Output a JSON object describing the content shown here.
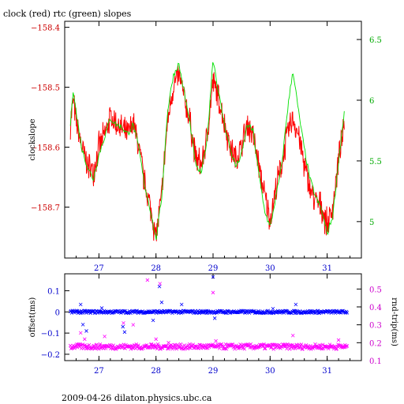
{
  "title": "clock (red) rtc (green) slopes",
  "footer": "2009-04-26 dilaton.physics.ubc.ca",
  "colors": {
    "clock": "#ff0000",
    "rtc": "#00e000",
    "offset": "#0000ff",
    "rnd_trip": "#ff00ff",
    "left_ticks_top": "#cc0000",
    "right_ticks_top": "#00aa00",
    "left_ticks_bottom": "#0000cc",
    "right_ticks_bottom": "#cc00cc"
  },
  "chart_data": [
    {
      "type": "line",
      "title": "clock (red) rtc (green) slopes",
      "xlabel": "",
      "ylabel": "clockslope",
      "ylabel_right": "",
      "xlim": [
        26.4,
        31.6
      ],
      "ylim": [
        -158.785,
        -158.39
      ],
      "ylim_right": [
        4.7,
        6.65
      ],
      "xticks": [
        "27",
        "28",
        "29",
        "30",
        "31"
      ],
      "yticks": [
        "-158.4",
        "-158.5",
        "-158.6",
        "-158.7"
      ],
      "yticks_right": [
        "6.5",
        "6",
        "5.5",
        "5"
      ],
      "series": [
        {
          "name": "clock",
          "axis": "left",
          "x": [
            26.5,
            26.55,
            26.6,
            26.7,
            26.8,
            26.9,
            27.0,
            27.1,
            27.2,
            27.3,
            27.4,
            27.5,
            27.6,
            27.7,
            27.8,
            27.9,
            28.0,
            28.1,
            28.2,
            28.3,
            28.4,
            28.5,
            28.6,
            28.7,
            28.8,
            28.9,
            29.0,
            29.1,
            29.2,
            29.3,
            29.4,
            29.5,
            29.6,
            29.7,
            29.8,
            29.9,
            30.0,
            30.1,
            30.2,
            30.3,
            30.4,
            30.5,
            30.6,
            30.7,
            30.8,
            30.9,
            31.0,
            31.1,
            31.2,
            31.3
          ],
          "y": [
            -158.56,
            -158.52,
            -158.56,
            -158.6,
            -158.63,
            -158.64,
            -158.6,
            -158.58,
            -158.55,
            -158.56,
            -158.57,
            -158.58,
            -158.56,
            -158.6,
            -158.66,
            -158.7,
            -158.75,
            -158.68,
            -158.56,
            -158.5,
            -158.48,
            -158.52,
            -158.56,
            -158.62,
            -158.63,
            -158.58,
            -158.49,
            -158.52,
            -158.56,
            -158.6,
            -158.62,
            -158.6,
            -158.56,
            -158.58,
            -158.63,
            -158.68,
            -158.72,
            -158.67,
            -158.63,
            -158.58,
            -158.55,
            -158.58,
            -158.63,
            -158.67,
            -158.69,
            -158.7,
            -158.73,
            -158.7,
            -158.62,
            -158.57
          ]
        },
        {
          "name": "rtc",
          "axis": "right",
          "x": [
            26.5,
            26.55,
            26.6,
            26.7,
            26.8,
            26.9,
            27.0,
            27.1,
            27.2,
            27.3,
            27.4,
            27.5,
            27.6,
            27.7,
            27.8,
            27.9,
            28.0,
            28.1,
            28.2,
            28.3,
            28.4,
            28.5,
            28.6,
            28.7,
            28.8,
            28.9,
            29.0,
            29.1,
            29.2,
            29.3,
            29.4,
            29.5,
            29.6,
            29.7,
            29.8,
            29.9,
            30.0,
            30.1,
            30.2,
            30.3,
            30.4,
            30.5,
            30.6,
            30.7,
            30.8,
            30.9,
            31.0,
            31.1,
            31.2,
            31.3
          ],
          "y": [
            5.8,
            6.1,
            5.9,
            5.6,
            5.45,
            5.35,
            5.55,
            5.7,
            5.85,
            5.8,
            5.78,
            5.72,
            5.8,
            5.6,
            5.3,
            5.1,
            4.85,
            5.2,
            5.9,
            6.2,
            6.3,
            6.05,
            5.8,
            5.45,
            5.4,
            5.7,
            6.35,
            6.05,
            5.8,
            5.6,
            5.45,
            5.55,
            5.8,
            5.75,
            5.4,
            5.1,
            4.95,
            5.2,
            5.45,
            5.9,
            6.25,
            5.9,
            5.6,
            5.35,
            5.2,
            5.1,
            4.9,
            5.05,
            5.5,
            5.9
          ]
        }
      ]
    },
    {
      "type": "scatter",
      "xlabel": "",
      "ylabel": "offset(ms)",
      "ylabel_right": "rnd-trip(ms)",
      "xlim": [
        26.4,
        31.6
      ],
      "ylim": [
        -0.23,
        0.18
      ],
      "ylim_right": [
        0.1,
        0.585
      ],
      "xticks": [
        "27",
        "28",
        "29",
        "30",
        "31"
      ],
      "yticks": [
        "0.1",
        "0",
        "-0.1",
        "-0.2"
      ],
      "yticks_right": [
        "0.5",
        "0.4",
        "0.3",
        "0.2",
        "0.1"
      ],
      "series": [
        {
          "name": "offset",
          "axis": "left",
          "band": {
            "from": 26.5,
            "to": 31.35,
            "mean": 0.0,
            "spread": 0.006,
            "count": 400
          },
          "outliers_x": [
            26.68,
            26.72,
            26.78,
            27.05,
            27.42,
            27.45,
            27.95,
            28.06,
            28.1,
            28.45,
            29.0,
            29.03,
            30.05,
            30.45
          ],
          "outliers_y": [
            0.035,
            -0.06,
            -0.09,
            0.018,
            -0.07,
            -0.095,
            -0.04,
            0.12,
            0.045,
            0.035,
            0.165,
            -0.03,
            0.015,
            0.035
          ]
        },
        {
          "name": "rnd-trip",
          "axis": "right",
          "band": {
            "from": 26.5,
            "to": 31.35,
            "mean": 0.178,
            "spread": 0.014,
            "count": 400
          },
          "outliers_x": [
            26.68,
            26.75,
            27.1,
            27.43,
            27.6,
            27.85,
            28.0,
            28.07,
            28.22,
            29.0,
            29.05,
            30.4,
            31.2
          ],
          "outliers_y": [
            0.255,
            0.22,
            0.235,
            0.31,
            0.3,
            0.55,
            0.22,
            0.53,
            0.2,
            0.48,
            0.21,
            0.24,
            0.215
          ]
        }
      ]
    }
  ]
}
